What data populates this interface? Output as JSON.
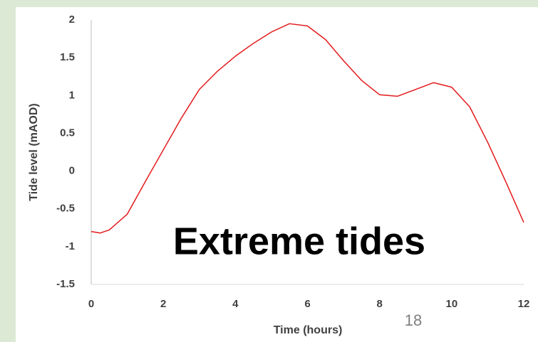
{
  "chart_data": {
    "type": "line",
    "x_label": "Time (hours)",
    "y_label": "Tide level (mAOD)",
    "annotation": "Extreme tides",
    "page_number": "18",
    "x": [
      0,
      0.25,
      0.5,
      1,
      1.5,
      2,
      2.5,
      3,
      3.5,
      4,
      4.5,
      5,
      5.5,
      6,
      6.5,
      7,
      7.5,
      8,
      8.5,
      9,
      9.5,
      10,
      10.5,
      11,
      11.5,
      12
    ],
    "series": [
      {
        "color": "#e31a1c",
        "values": [
          -0.8,
          -0.82,
          -0.78,
          -0.57,
          -0.14,
          0.28,
          0.7,
          1.08,
          1.32,
          1.52,
          1.69,
          1.84,
          1.95,
          1.92,
          1.74,
          1.46,
          1.2,
          1.01,
          0.99,
          1.08,
          1.17,
          1.11,
          0.85,
          0.38,
          -0.14,
          -0.68
        ]
      }
    ],
    "xlim": [
      0,
      12
    ],
    "xticks": [
      0,
      2,
      4,
      6,
      8,
      10,
      12
    ],
    "ylim": [
      -1.5,
      2
    ],
    "yticks": [
      2,
      1.5,
      1,
      0.5,
      0,
      -0.5,
      -1,
      -1.5
    ],
    "grid": false
  }
}
